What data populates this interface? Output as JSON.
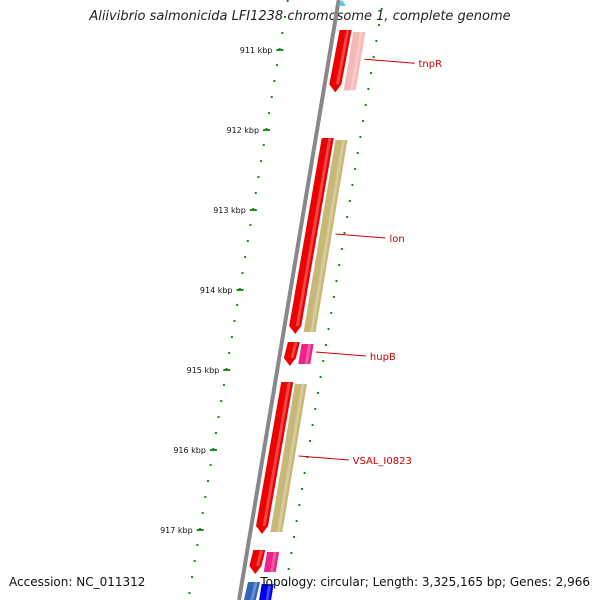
{
  "header": {
    "title": "Aliivibrio salmonicida LFI1238 chromosome 1, complete genome"
  },
  "footer": {
    "accession": "Accession: NC_011312",
    "summary": "Topology: circular; Length: 3,325,165 bp; Genes: 2,966"
  },
  "ruler": {
    "ticks": [
      {
        "label": "911 kbp",
        "pos_kbp": 911
      },
      {
        "label": "912 kbp",
        "pos_kbp": 912
      },
      {
        "label": "913 kbp",
        "pos_kbp": 913
      },
      {
        "label": "914 kbp",
        "pos_kbp": 914
      },
      {
        "label": "915 kbp",
        "pos_kbp": 915
      },
      {
        "label": "916 kbp",
        "pos_kbp": 916
      },
      {
        "label": "917 kbp",
        "pos_kbp": 917
      }
    ]
  },
  "genes": [
    {
      "label": "tnpR",
      "start_kbp": 910.75,
      "end_kbp": 911.53,
      "color": "#ee0000",
      "partner_color": "#f7b8b8"
    },
    {
      "label": "lon",
      "start_kbp": 912.1,
      "end_kbp": 914.55,
      "color": "#ee0000",
      "partner_color": "#c8b878"
    },
    {
      "label": "hupB",
      "start_kbp": 914.65,
      "end_kbp": 914.95,
      "color": "#ee0000",
      "partner_color": "#ee2288"
    },
    {
      "label": "VSAL_I0823",
      "start_kbp": 915.15,
      "end_kbp": 917.05,
      "color": "#ee0000",
      "partner_color": "#c8b878"
    },
    {
      "label": "",
      "start_kbp": 917.25,
      "end_kbp": 917.55,
      "color": "#ee0000",
      "partner_color": "#ee2288"
    },
    {
      "label": "",
      "start_kbp": 917.65,
      "end_kbp": 918.0,
      "color": "#3366bb",
      "partner_color": "#0000ee"
    }
  ],
  "colors": {
    "backbone": "#888888",
    "ruler_dots": "#228822",
    "label_line": "#cc0000"
  }
}
